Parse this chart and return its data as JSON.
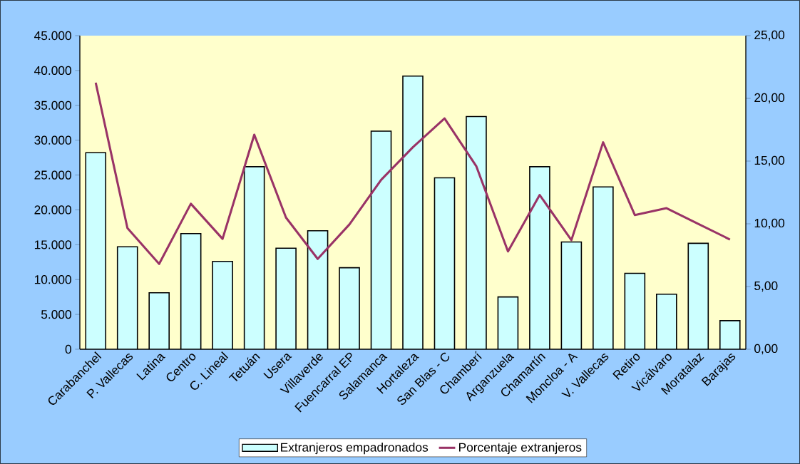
{
  "chart_data": {
    "type": "bar",
    "categories": [
      "Carabanchel",
      "P. Vallecas",
      "Latina",
      "Centro",
      "C. Lineal",
      "Tetuán",
      "Usera",
      "Villaverde",
      "Fuencarral EP",
      "Salamanca",
      "Hortaleza",
      "San Blas - C",
      "Chamberí",
      "Arganzuela",
      "Chamartín",
      "Moncloa - A",
      "V. Vallecas",
      "Retiro",
      "Vicálvaro",
      "Moratalaz",
      "Barajas"
    ],
    "series": [
      {
        "name": "Extranjeros empadronados",
        "color": "#ccffff",
        "values": [
          28200,
          14700,
          8100,
          16600,
          12600,
          26200,
          14500,
          17000,
          11700,
          31300,
          39200,
          24600,
          33400,
          7500,
          26200,
          15400,
          23300,
          10900,
          7900,
          15200,
          4100
        ]
      },
      {
        "name": "Porcentaje extranjeros",
        "type": "line",
        "axis": "y2",
        "color": "#993366",
        "values": [
          21.25,
          9.66,
          6.8,
          11.6,
          8.8,
          17.1,
          10.5,
          7.2,
          9.95,
          13.5,
          16.1,
          18.4,
          14.6,
          7.8,
          12.3,
          8.7,
          16.5,
          10.7,
          11.25,
          10.0,
          8.75
        ]
      }
    ],
    "ylim": [
      0,
      45000
    ],
    "yticks": [
      {
        "value": 0,
        "label": "0"
      },
      {
        "value": 5000,
        "label": "5.000"
      },
      {
        "value": 10000,
        "label": "10.000"
      },
      {
        "value": 15000,
        "label": "15.000"
      },
      {
        "value": 20000,
        "label": "20.000"
      },
      {
        "value": 25000,
        "label": "25.000"
      },
      {
        "value": 30000,
        "label": "30.000"
      },
      {
        "value": 35000,
        "label": "35.000"
      },
      {
        "value": 40000,
        "label": "40.000"
      },
      {
        "value": 45000,
        "label": "45.000"
      }
    ],
    "y2lim": [
      0,
      25
    ],
    "y2ticks": [
      {
        "value": 0,
        "label": "0,00"
      },
      {
        "value": 5,
        "label": "5,00"
      },
      {
        "value": 10,
        "label": "10,00"
      },
      {
        "value": 15,
        "label": "15,00"
      },
      {
        "value": 20,
        "label": "20,00"
      },
      {
        "value": 25,
        "label": "25,00"
      }
    ],
    "legend": "bottom"
  }
}
